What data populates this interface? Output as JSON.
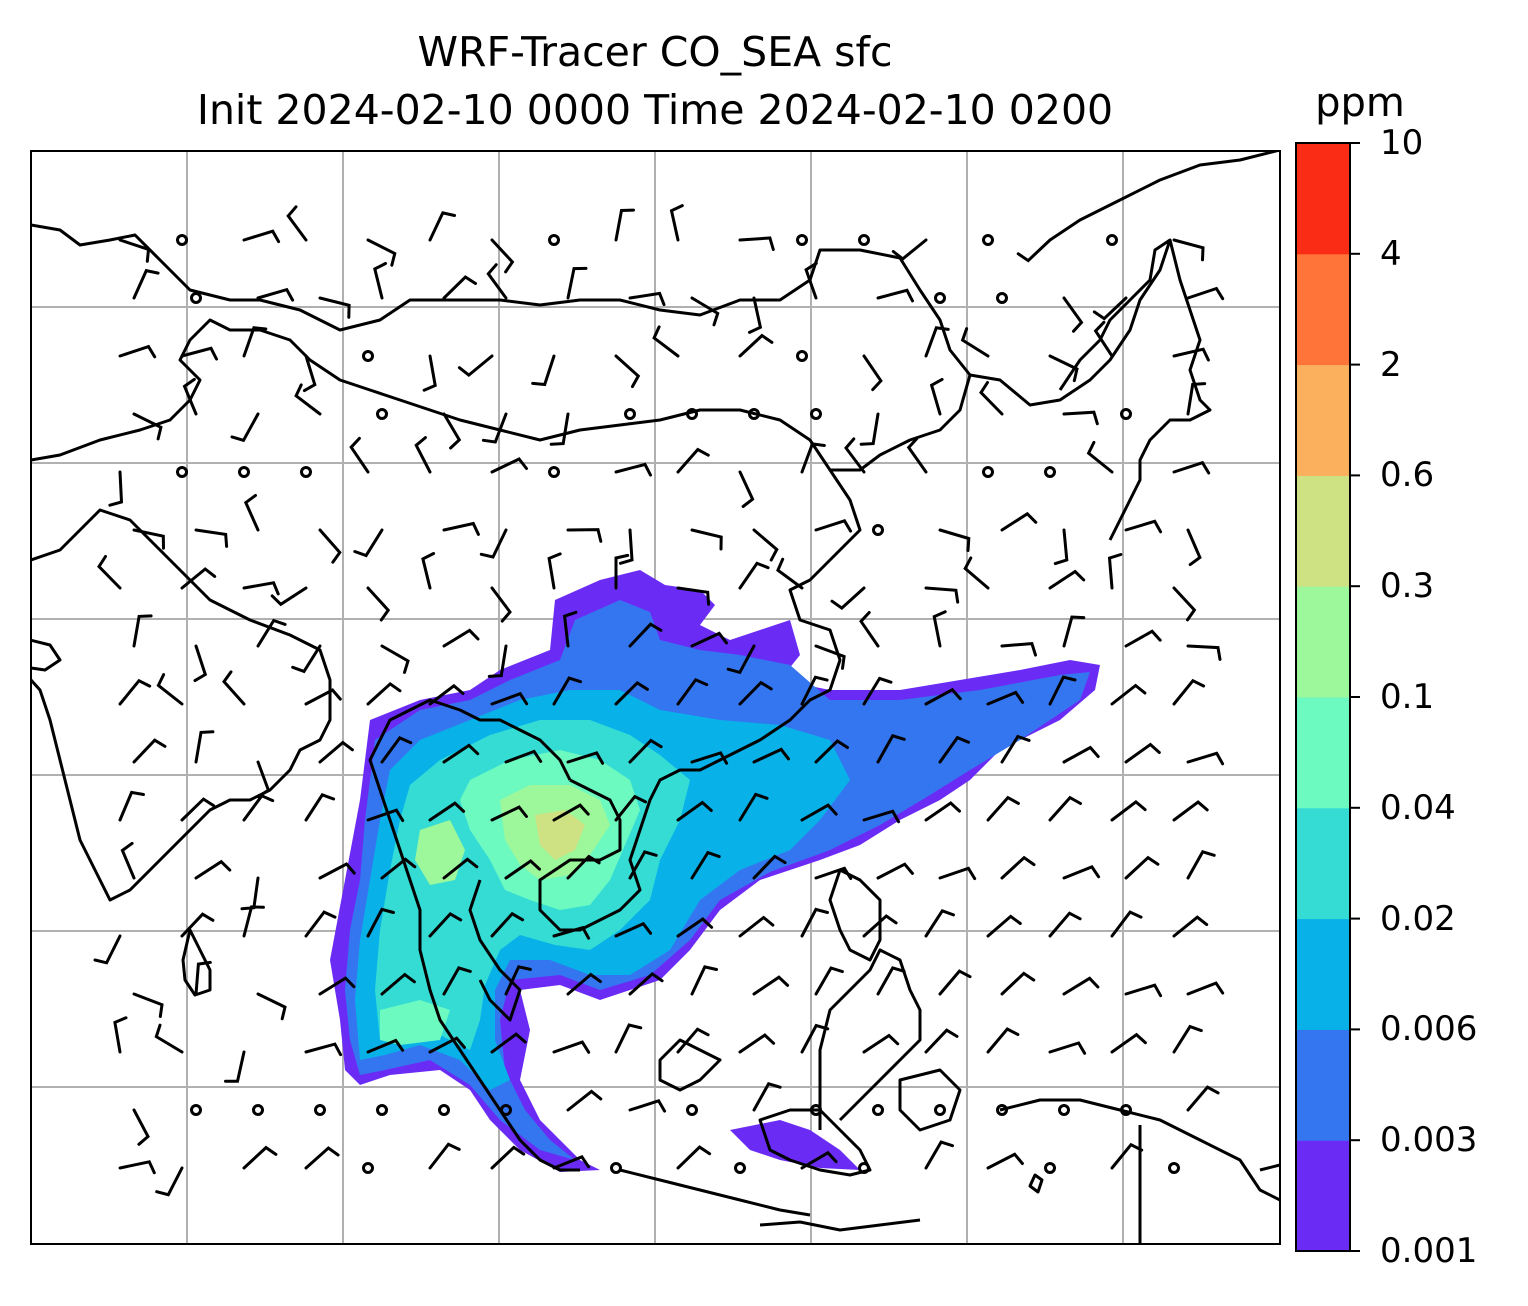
{
  "figure": {
    "title_line1": "WRF-Tracer CO_SEA sfc",
    "title_line2": "Init 2024-02-10 0000 Time 2024-02-10 0200",
    "colorbar_unit": "ppm"
  },
  "colorbar": {
    "ticks": [
      "0.001",
      "0.003",
      "0.006",
      "0.02",
      "0.04",
      "0.1",
      "0.3",
      "0.6",
      "2",
      "4",
      "10"
    ],
    "colors": [
      "#6a2cf5",
      "#3476f0",
      "#08b2e8",
      "#34dcd4",
      "#6cfac0",
      "#9cf89a",
      "#cee183",
      "#fbb05e",
      "#ff7438",
      "#fb2c16"
    ]
  },
  "map": {
    "gridlines": true,
    "line_color": "#000000",
    "grid_color": "#b0b0b0"
  }
}
